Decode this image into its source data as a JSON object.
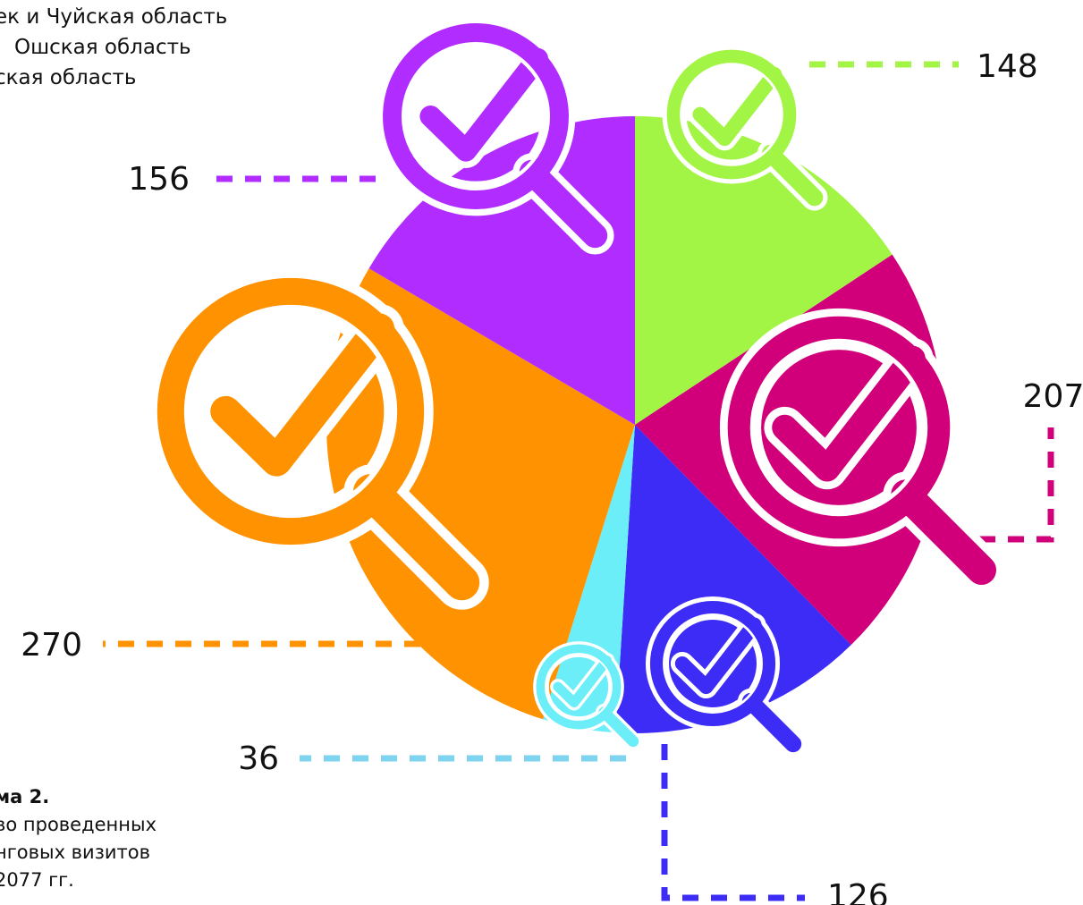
{
  "legend": {
    "items": [
      "ек и Чуйская область",
      "Ошская область",
      "ская область"
    ]
  },
  "caption": {
    "title": "ма 2.",
    "lines": [
      "во проведенных",
      "нговых визитов",
      "2077 гг."
    ]
  },
  "chart_data": {
    "type": "pie",
    "title": "",
    "slices": [
      {
        "label": "148",
        "value": 148,
        "color": "#A3F545"
      },
      {
        "label": "207",
        "value": 207,
        "color": "#D1007A"
      },
      {
        "label": "126",
        "value": 126,
        "color": "#3C2CF5"
      },
      {
        "label": "36",
        "value": 36,
        "color": "#6CEEF8"
      },
      {
        "label": "270",
        "value": 270,
        "color": "#FF9200"
      },
      {
        "label": "156",
        "value": 156,
        "color": "#B12CFF"
      }
    ],
    "icon": "magnifier-check-icon"
  }
}
